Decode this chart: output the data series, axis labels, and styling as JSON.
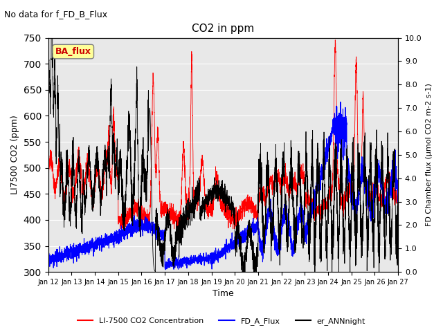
{
  "title": "CO2 in ppm",
  "suptitle": "No data for f_FD_B_Flux",
  "ylabel_left": "LI7500 CO2 (ppm)",
  "ylabel_right": "FD Chamber flux (μmol CO2 m-2 s-1)",
  "xlabel": "Time",
  "ylim_left": [
    300,
    750
  ],
  "ylim_right": [
    0.0,
    10.0
  ],
  "yticks_left": [
    300,
    350,
    400,
    450,
    500,
    550,
    600,
    650,
    700,
    750
  ],
  "yticks_right": [
    0.0,
    1.0,
    2.0,
    3.0,
    4.0,
    5.0,
    6.0,
    7.0,
    8.0,
    9.0,
    10.0
  ],
  "xtick_labels": [
    "Jan 12",
    "Jan 13",
    "Jan 14",
    "Jan 15",
    "Jan 16",
    "Jan 17",
    "Jan 18",
    "Jan 19",
    "Jan 20",
    "Jan 21",
    "Jan 22",
    "Jan 23",
    "Jan 24",
    "Jan 25",
    "Jan 26",
    "Jan 27"
  ],
  "ba_flux_box_color": "#ffff99",
  "ba_flux_text_color": "#cc0000",
  "background_color": "#e8e8e8",
  "legend_entries": [
    "LI-7500 CO2 Concentration",
    "FD_A_Flux",
    "er_ANNnight"
  ],
  "n_points": 4000
}
